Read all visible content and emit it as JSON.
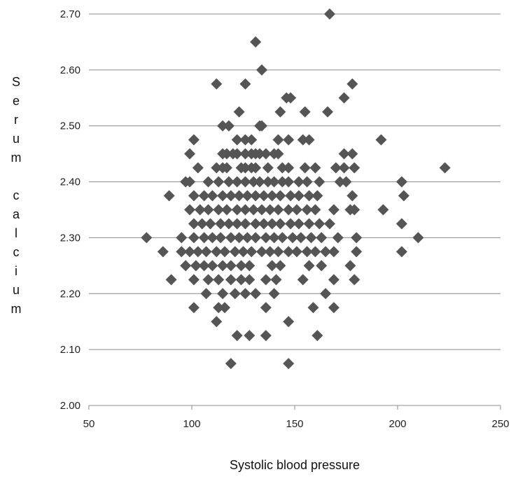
{
  "chart_data": {
    "type": "scatter",
    "title": "",
    "xlabel": "Systolic blood pressure",
    "ylabel": "Serum calcium",
    "xlim": [
      50,
      250
    ],
    "ylim": [
      2.0,
      2.7
    ],
    "x_ticks": [
      "50",
      "100",
      "150",
      "200",
      "250"
    ],
    "y_ticks": [
      "2.00",
      "2.10",
      "2.20",
      "2.30",
      "2.40",
      "2.50",
      "2.60",
      "2.70"
    ],
    "grid": "horizontal",
    "marker": "diamond",
    "marker_color": "#555555",
    "series": [
      {
        "points": [
          [
            167,
            2.7
          ],
          [
            131,
            2.65
          ],
          [
            134,
            2.6
          ],
          [
            112,
            2.575
          ],
          [
            126,
            2.575
          ],
          [
            178,
            2.575
          ],
          [
            146,
            2.55
          ],
          [
            148,
            2.55
          ],
          [
            174,
            2.55
          ],
          [
            123,
            2.525
          ],
          [
            143,
            2.525
          ],
          [
            155,
            2.525
          ],
          [
            166,
            2.525
          ],
          [
            115,
            2.5
          ],
          [
            118,
            2.5
          ],
          [
            133,
            2.5
          ],
          [
            134,
            2.5
          ],
          [
            101,
            2.475
          ],
          [
            122,
            2.475
          ],
          [
            126,
            2.475
          ],
          [
            129,
            2.475
          ],
          [
            142,
            2.475
          ],
          [
            147,
            2.475
          ],
          [
            154,
            2.475
          ],
          [
            157,
            2.475
          ],
          [
            192,
            2.475
          ],
          [
            99,
            2.45
          ],
          [
            115,
            2.45
          ],
          [
            117,
            2.45
          ],
          [
            120,
            2.45
          ],
          [
            122,
            2.45
          ],
          [
            126,
            2.45
          ],
          [
            129,
            2.45
          ],
          [
            131,
            2.45
          ],
          [
            133,
            2.45
          ],
          [
            136,
            2.45
          ],
          [
            140,
            2.45
          ],
          [
            142,
            2.45
          ],
          [
            174,
            2.45
          ],
          [
            178,
            2.45
          ],
          [
            103,
            2.425
          ],
          [
            112,
            2.425
          ],
          [
            115,
            2.425
          ],
          [
            117,
            2.425
          ],
          [
            124,
            2.425
          ],
          [
            126,
            2.425
          ],
          [
            129,
            2.425
          ],
          [
            131,
            2.425
          ],
          [
            137,
            2.425
          ],
          [
            144,
            2.425
          ],
          [
            147,
            2.425
          ],
          [
            155,
            2.425
          ],
          [
            160,
            2.425
          ],
          [
            170,
            2.425
          ],
          [
            174,
            2.425
          ],
          [
            179,
            2.425
          ],
          [
            223,
            2.425
          ],
          [
            97,
            2.4
          ],
          [
            99,
            2.4
          ],
          [
            108,
            2.4
          ],
          [
            113,
            2.4
          ],
          [
            118,
            2.4
          ],
          [
            122,
            2.4
          ],
          [
            126,
            2.4
          ],
          [
            130,
            2.4
          ],
          [
            133,
            2.4
          ],
          [
            137,
            2.4
          ],
          [
            140,
            2.4
          ],
          [
            144,
            2.4
          ],
          [
            147,
            2.4
          ],
          [
            152,
            2.4
          ],
          [
            156,
            2.4
          ],
          [
            162,
            2.4
          ],
          [
            172,
            2.4
          ],
          [
            175,
            2.4
          ],
          [
            202,
            2.4
          ],
          [
            89,
            2.375
          ],
          [
            101,
            2.375
          ],
          [
            106,
            2.375
          ],
          [
            110,
            2.375
          ],
          [
            115,
            2.375
          ],
          [
            119,
            2.375
          ],
          [
            123,
            2.375
          ],
          [
            127,
            2.375
          ],
          [
            131,
            2.375
          ],
          [
            135,
            2.375
          ],
          [
            139,
            2.375
          ],
          [
            143,
            2.375
          ],
          [
            148,
            2.375
          ],
          [
            152,
            2.375
          ],
          [
            157,
            2.375
          ],
          [
            161,
            2.375
          ],
          [
            178,
            2.375
          ],
          [
            203,
            2.375
          ],
          [
            99,
            2.35
          ],
          [
            104,
            2.35
          ],
          [
            108,
            2.35
          ],
          [
            113,
            2.35
          ],
          [
            117,
            2.35
          ],
          [
            122,
            2.35
          ],
          [
            126,
            2.35
          ],
          [
            130,
            2.35
          ],
          [
            134,
            2.35
          ],
          [
            138,
            2.35
          ],
          [
            142,
            2.35
          ],
          [
            147,
            2.35
          ],
          [
            151,
            2.35
          ],
          [
            156,
            2.35
          ],
          [
            160,
            2.35
          ],
          [
            169,
            2.35
          ],
          [
            177,
            2.35
          ],
          [
            179,
            2.35
          ],
          [
            193,
            2.35
          ],
          [
            101,
            2.325
          ],
          [
            105,
            2.325
          ],
          [
            109,
            2.325
          ],
          [
            114,
            2.325
          ],
          [
            118,
            2.325
          ],
          [
            122,
            2.325
          ],
          [
            126,
            2.325
          ],
          [
            131,
            2.325
          ],
          [
            135,
            2.325
          ],
          [
            139,
            2.325
          ],
          [
            143,
            2.325
          ],
          [
            148,
            2.325
          ],
          [
            152,
            2.325
          ],
          [
            157,
            2.325
          ],
          [
            162,
            2.325
          ],
          [
            167,
            2.325
          ],
          [
            202,
            2.325
          ],
          [
            78,
            2.3
          ],
          [
            95,
            2.3
          ],
          [
            101,
            2.3
          ],
          [
            106,
            2.3
          ],
          [
            110,
            2.3
          ],
          [
            114,
            2.3
          ],
          [
            119,
            2.3
          ],
          [
            123,
            2.3
          ],
          [
            127,
            2.3
          ],
          [
            131,
            2.3
          ],
          [
            136,
            2.3
          ],
          [
            140,
            2.3
          ],
          [
            144,
            2.3
          ],
          [
            149,
            2.3
          ],
          [
            153,
            2.3
          ],
          [
            158,
            2.3
          ],
          [
            163,
            2.3
          ],
          [
            171,
            2.3
          ],
          [
            180,
            2.3
          ],
          [
            210,
            2.3
          ],
          [
            86,
            2.275
          ],
          [
            95,
            2.275
          ],
          [
            99,
            2.275
          ],
          [
            103,
            2.275
          ],
          [
            107,
            2.275
          ],
          [
            112,
            2.275
          ],
          [
            116,
            2.275
          ],
          [
            121,
            2.275
          ],
          [
            125,
            2.275
          ],
          [
            129,
            2.275
          ],
          [
            134,
            2.275
          ],
          [
            138,
            2.275
          ],
          [
            142,
            2.275
          ],
          [
            147,
            2.275
          ],
          [
            151,
            2.275
          ],
          [
            156,
            2.275
          ],
          [
            160,
            2.275
          ],
          [
            165,
            2.275
          ],
          [
            169,
            2.275
          ],
          [
            180,
            2.275
          ],
          [
            202,
            2.275
          ],
          [
            97,
            2.25
          ],
          [
            102,
            2.25
          ],
          [
            106,
            2.25
          ],
          [
            110,
            2.25
          ],
          [
            115,
            2.25
          ],
          [
            119,
            2.25
          ],
          [
            124,
            2.25
          ],
          [
            128,
            2.25
          ],
          [
            139,
            2.25
          ],
          [
            143,
            2.25
          ],
          [
            157,
            2.25
          ],
          [
            163,
            2.25
          ],
          [
            177,
            2.25
          ],
          [
            90,
            2.225
          ],
          [
            101,
            2.225
          ],
          [
            108,
            2.225
          ],
          [
            113,
            2.225
          ],
          [
            119,
            2.225
          ],
          [
            124,
            2.225
          ],
          [
            128,
            2.225
          ],
          [
            136,
            2.225
          ],
          [
            141,
            2.225
          ],
          [
            154,
            2.225
          ],
          [
            169,
            2.225
          ],
          [
            179,
            2.225
          ],
          [
            107,
            2.2
          ],
          [
            115,
            2.2
          ],
          [
            121,
            2.2
          ],
          [
            126,
            2.2
          ],
          [
            131,
            2.2
          ],
          [
            140,
            2.2
          ],
          [
            165,
            2.2
          ],
          [
            101,
            2.175
          ],
          [
            113,
            2.175
          ],
          [
            116,
            2.175
          ],
          [
            136,
            2.175
          ],
          [
            159,
            2.175
          ],
          [
            169,
            2.175
          ],
          [
            112,
            2.15
          ],
          [
            147,
            2.15
          ],
          [
            122,
            2.125
          ],
          [
            128,
            2.125
          ],
          [
            136,
            2.125
          ],
          [
            161,
            2.125
          ],
          [
            119,
            2.075
          ],
          [
            147,
            2.075
          ]
        ]
      }
    ]
  }
}
